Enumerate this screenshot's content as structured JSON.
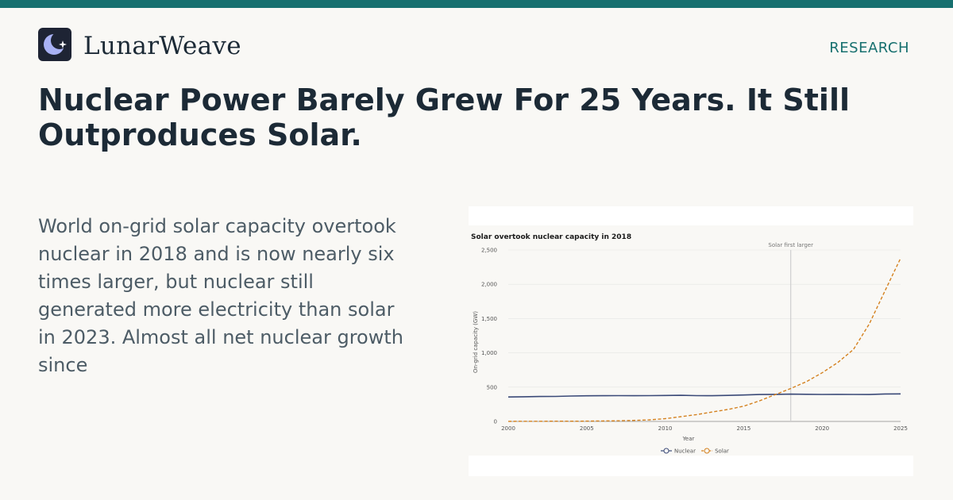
{
  "brand": {
    "name": "LunarWeave",
    "section": "RESEARCH",
    "accent": "#17706f",
    "logo_icon": "moon-star-icon"
  },
  "headline": "Nuclear Power Barely Grew For 25 Years. It Still Outproduces Solar.",
  "summary": "World on-grid solar capacity overtook nuclear in 2018 and is now nearly six times larger, but nuclear still generated more electricity than solar in 2023. Almost all net nuclear growth since",
  "chart_data": {
    "type": "line",
    "title": "Solar overtook nuclear capacity in 2018",
    "xlabel": "Year",
    "ylabel": "On-grid capacity (GW)",
    "xlim": [
      2000,
      2025
    ],
    "ylim": [
      0,
      2500
    ],
    "x_ticks": [
      2000,
      2005,
      2010,
      2015,
      2020,
      2025
    ],
    "y_ticks": [
      0,
      500,
      1000,
      1500,
      2000,
      2500
    ],
    "y_tick_labels": [
      "0",
      "500",
      "1,000",
      "1,500",
      "2,000",
      "2,500"
    ],
    "grid": true,
    "legend_position": "bottom-center",
    "x": [
      2000,
      2001,
      2002,
      2003,
      2004,
      2005,
      2006,
      2007,
      2008,
      2009,
      2010,
      2011,
      2012,
      2013,
      2014,
      2015,
      2016,
      2017,
      2018,
      2019,
      2020,
      2021,
      2022,
      2023,
      2024,
      2025
    ],
    "series": [
      {
        "name": "Nuclear",
        "color": "#3b4a78",
        "style": "solid",
        "values": [
          357,
          360,
          364,
          365,
          370,
          374,
          375,
          376,
          375,
          376,
          378,
          381,
          376,
          375,
          380,
          385,
          392,
          395,
          398,
          396,
          393,
          395,
          393,
          392,
          400,
          402
        ]
      },
      {
        "name": "Solar",
        "color": "#d4811f",
        "style": "dashed",
        "values": [
          1,
          2,
          2,
          3,
          4,
          5,
          7,
          9,
          15,
          23,
          40,
          70,
          100,
          138,
          175,
          222,
          300,
          390,
          480,
          580,
          710,
          860,
          1050,
          1420,
          1900,
          2380
        ]
      }
    ],
    "annotations": [
      {
        "x": 2018,
        "label": "Solar first larger"
      }
    ]
  }
}
